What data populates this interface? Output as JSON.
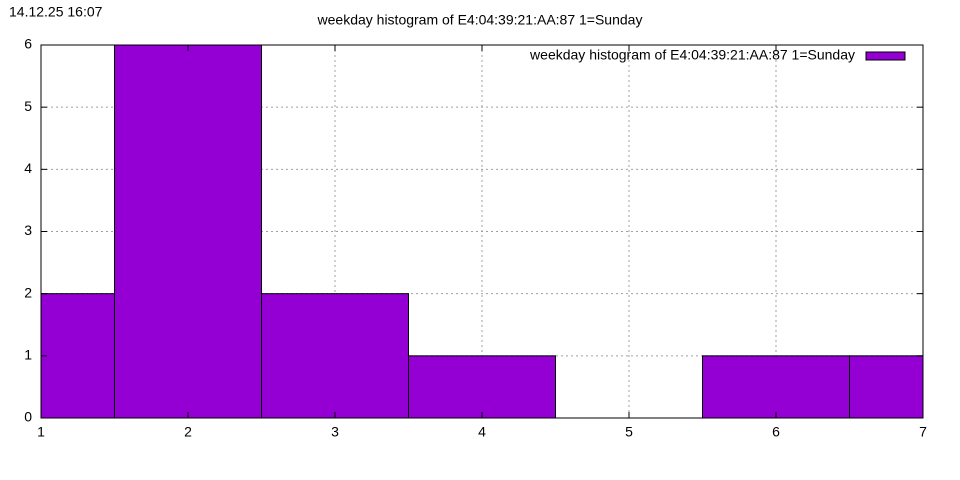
{
  "timestamp": "14.12.25 16:07",
  "chart_data": {
    "type": "bar",
    "title": "weekday histogram of E4:04:39:21:AA:87 1=Sunday",
    "x": [
      1,
      2,
      3,
      4,
      5,
      6,
      7
    ],
    "series": [
      {
        "name": "weekday histogram of E4:04:39:21:AA:87 1=Sunday",
        "color": "#9400d3",
        "values": [
          2,
          6,
          2,
          1,
          0,
          1,
          1
        ]
      }
    ],
    "xlim": [
      1,
      7
    ],
    "xticks": [
      1,
      2,
      3,
      4,
      5,
      6,
      7
    ],
    "ylim": [
      0,
      6
    ],
    "yticks": [
      0,
      1,
      2,
      3,
      4,
      5,
      6
    ],
    "grid": true,
    "legend": "top-right"
  }
}
